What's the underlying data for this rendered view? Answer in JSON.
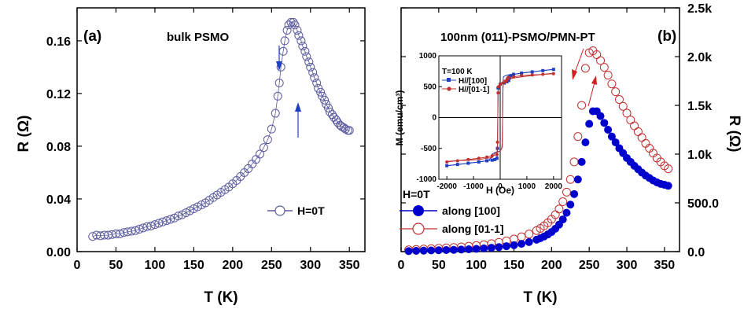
{
  "chart_data": [
    {
      "type": "scatter",
      "panel_label": "(a)",
      "annotation": "bulk PSMO",
      "xlabel": "T (K)",
      "ylabel": "R (Ω)",
      "xlim": [
        0,
        370
      ],
      "ylim": [
        0,
        0.185
      ],
      "xticks": [
        "0",
        "50",
        "100",
        "150",
        "200",
        "250",
        "300",
        "350"
      ],
      "yticks": [
        "0.00",
        "0.04",
        "0.08",
        "0.12",
        "0.16"
      ],
      "legend": {
        "label": "H=0T",
        "position": "middle-right"
      },
      "colors": {
        "series": "#5a5aa0"
      },
      "series": [
        {
          "name": "H=0T",
          "x": [
            20,
            25,
            30,
            35,
            40,
            45,
            50,
            55,
            60,
            65,
            70,
            75,
            80,
            85,
            90,
            95,
            100,
            105,
            110,
            115,
            120,
            125,
            130,
            135,
            140,
            145,
            150,
            155,
            160,
            165,
            170,
            175,
            180,
            185,
            190,
            195,
            200,
            205,
            210,
            215,
            220,
            225,
            230,
            235,
            240,
            245,
            250,
            255,
            258,
            260,
            262,
            265,
            267,
            270,
            272,
            275,
            278,
            280,
            283,
            285,
            288,
            290,
            293,
            295,
            298,
            300,
            303,
            305,
            308,
            310,
            313,
            315,
            318,
            320,
            323,
            325,
            328,
            330,
            333,
            335,
            338,
            340,
            343,
            345,
            348,
            350
          ],
          "y": [
            0.0115,
            0.0125,
            0.012,
            0.0125,
            0.0125,
            0.013,
            0.0135,
            0.0135,
            0.0145,
            0.015,
            0.0155,
            0.016,
            0.017,
            0.018,
            0.019,
            0.0195,
            0.0205,
            0.0215,
            0.0225,
            0.0235,
            0.0245,
            0.0255,
            0.027,
            0.028,
            0.0295,
            0.031,
            0.0325,
            0.034,
            0.0355,
            0.037,
            0.039,
            0.041,
            0.043,
            0.045,
            0.047,
            0.049,
            0.0515,
            0.054,
            0.057,
            0.06,
            0.063,
            0.0665,
            0.07,
            0.074,
            0.079,
            0.085,
            0.093,
            0.105,
            0.118,
            0.128,
            0.14,
            0.152,
            0.16,
            0.168,
            0.172,
            0.174,
            0.174,
            0.172,
            0.168,
            0.164,
            0.16,
            0.156,
            0.152,
            0.148,
            0.144,
            0.14,
            0.136,
            0.132,
            0.128,
            0.124,
            0.121,
            0.118,
            0.115,
            0.112,
            0.109,
            0.106,
            0.104,
            0.102,
            0.1,
            0.098,
            0.096,
            0.095,
            0.094,
            0.093,
            0.092,
            0.092
          ]
        }
      ]
    },
    {
      "type": "scatter",
      "panel_label": "(b)",
      "annotation": "100nm (011)-PSMO/PMN-PT",
      "xlabel": "T (K)",
      "ylabel": "R (Ω)",
      "xlim": [
        0,
        370
      ],
      "ylim": [
        0,
        2500
      ],
      "xticks": [
        "0",
        "50",
        "100",
        "150",
        "200",
        "250",
        "300",
        "350"
      ],
      "yticks": [
        "0.0",
        "500.0",
        "1.0k",
        "1.5k",
        "2.0k",
        "2.5k"
      ],
      "legend": {
        "title": "H=0T",
        "position": "lower-left"
      },
      "colors": {
        "along100": "#0000cc",
        "along011": "#c03030"
      },
      "series": [
        {
          "name": "along [100]",
          "x": [
            10,
            20,
            30,
            40,
            50,
            60,
            70,
            80,
            90,
            100,
            110,
            120,
            130,
            140,
            150,
            160,
            170,
            180,
            185,
            190,
            195,
            200,
            205,
            210,
            215,
            220,
            225,
            230,
            235,
            240,
            245,
            250,
            255,
            260,
            265,
            270,
            275,
            280,
            285,
            290,
            295,
            300,
            305,
            310,
            315,
            320,
            325,
            330,
            335,
            340,
            345,
            350,
            355
          ],
          "y": [
            5,
            8,
            10,
            12,
            14,
            16,
            18,
            21,
            24,
            28,
            33,
            39,
            46,
            55,
            66,
            80,
            98,
            122,
            137,
            155,
            176,
            202,
            235,
            277,
            330,
            398,
            482,
            590,
            740,
            920,
            1120,
            1310,
            1440,
            1440,
            1390,
            1320,
            1250,
            1180,
            1120,
            1060,
            1010,
            960,
            920,
            880,
            845,
            810,
            780,
            755,
            730,
            710,
            695,
            685,
            675
          ]
        },
        {
          "name": "along [01-1]",
          "x": [
            10,
            20,
            30,
            40,
            50,
            60,
            70,
            80,
            90,
            100,
            110,
            120,
            130,
            140,
            150,
            160,
            170,
            180,
            185,
            190,
            195,
            200,
            205,
            210,
            215,
            220,
            225,
            230,
            235,
            240,
            245,
            250,
            255,
            260,
            265,
            270,
            275,
            280,
            285,
            290,
            295,
            300,
            305,
            310,
            315,
            320,
            325,
            330,
            335,
            340,
            345,
            350,
            355
          ],
          "y": [
            18,
            22,
            26,
            30,
            34,
            38,
            42,
            48,
            55,
            62,
            71,
            82,
            95,
            110,
            129,
            152,
            180,
            216,
            238,
            264,
            295,
            332,
            378,
            437,
            512,
            610,
            740,
            920,
            1180,
            1500,
            1880,
            2040,
            2060,
            2020,
            1960,
            1890,
            1810,
            1720,
            1640,
            1560,
            1490,
            1420,
            1350,
            1290,
            1230,
            1170,
            1110,
            1060,
            1010,
            960,
            920,
            880,
            850
          ]
        }
      ]
    },
    {
      "type": "line",
      "role": "inset",
      "annotation": "T=100 K",
      "xlabel": "H (Oe)",
      "ylabel": "M (emu/cm³)",
      "xlim": [
        -2300,
        2300
      ],
      "ylim": [
        -1000,
        1000
      ],
      "xticks": [
        "-2000",
        "-1000",
        "0",
        "1000",
        "2000"
      ],
      "yticks": [
        "-1000",
        "-500",
        "0",
        "500",
        "1000"
      ],
      "series": [
        {
          "name": "H//[100]",
          "x": [
            -2000,
            -1600,
            -1200,
            -800,
            -500,
            -300,
            -200,
            -120,
            -100,
            -80,
            0,
            150,
            250,
            320,
            340,
            360,
            400,
            500,
            800,
            1200,
            1600,
            2000
          ],
          "y": [
            -780,
            -760,
            -740,
            -720,
            -700,
            -690,
            -680,
            -660,
            -500,
            480,
            540,
            560,
            580,
            600,
            640,
            660,
            680,
            700,
            720,
            740,
            760,
            780
          ]
        },
        {
          "name": "H//[01-1]",
          "x": [
            -2000,
            -1600,
            -1200,
            -800,
            -500,
            -300,
            -120,
            -100,
            -80,
            -60,
            0,
            100,
            200,
            240,
            260,
            280,
            300,
            500,
            800,
            1200,
            1600,
            2000
          ],
          "y": [
            -720,
            -700,
            -680,
            -660,
            -640,
            -620,
            -600,
            -400,
            400,
            500,
            540,
            560,
            580,
            600,
            620,
            640,
            650,
            660,
            680,
            690,
            700,
            710
          ]
        }
      ]
    }
  ]
}
